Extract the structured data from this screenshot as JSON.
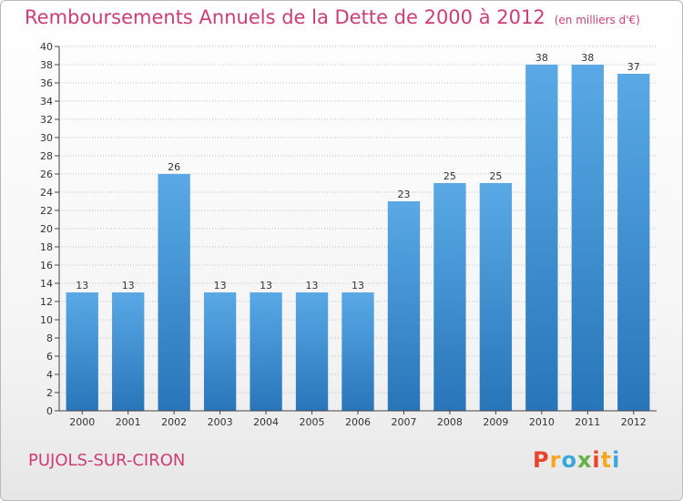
{
  "header": {
    "title": "Remboursements Annuels de la Dette de 2000 à 2012",
    "subtitle": "(en milliers d'€)"
  },
  "footer": {
    "commune": "PUJOLS-SUR-CIRON",
    "logo_letters": [
      "P",
      "r",
      "o",
      "x",
      "i",
      "t",
      "i"
    ],
    "logo_colors": [
      "#e8452c",
      "#f7a823",
      "#3ca7dd",
      "#63b043",
      "#e8452c",
      "#f7a823",
      "#3ca7dd"
    ]
  },
  "colors": {
    "bar_light": "#5aa9e6",
    "bar_dark": "#2876b9",
    "accent": "#cd3d74",
    "axis": "#444444",
    "grid": "#bfbfbf"
  },
  "chart_data": {
    "type": "bar",
    "title": "Remboursements Annuels de la Dette de 2000 à 2012",
    "subtitle": "(en milliers d'€)",
    "categories": [
      "2000",
      "2001",
      "2002",
      "2003",
      "2004",
      "2005",
      "2006",
      "2007",
      "2008",
      "2009",
      "2010",
      "2011",
      "2012"
    ],
    "values": [
      13,
      13,
      26,
      13,
      13,
      13,
      13,
      23,
      25,
      25,
      38,
      38,
      37
    ],
    "ylim": [
      0,
      40
    ],
    "yticks": [
      0,
      2,
      4,
      6,
      8,
      10,
      12,
      14,
      16,
      18,
      20,
      22,
      24,
      26,
      28,
      30,
      32,
      34,
      36,
      38,
      40
    ],
    "grid": true,
    "legend": "none"
  }
}
